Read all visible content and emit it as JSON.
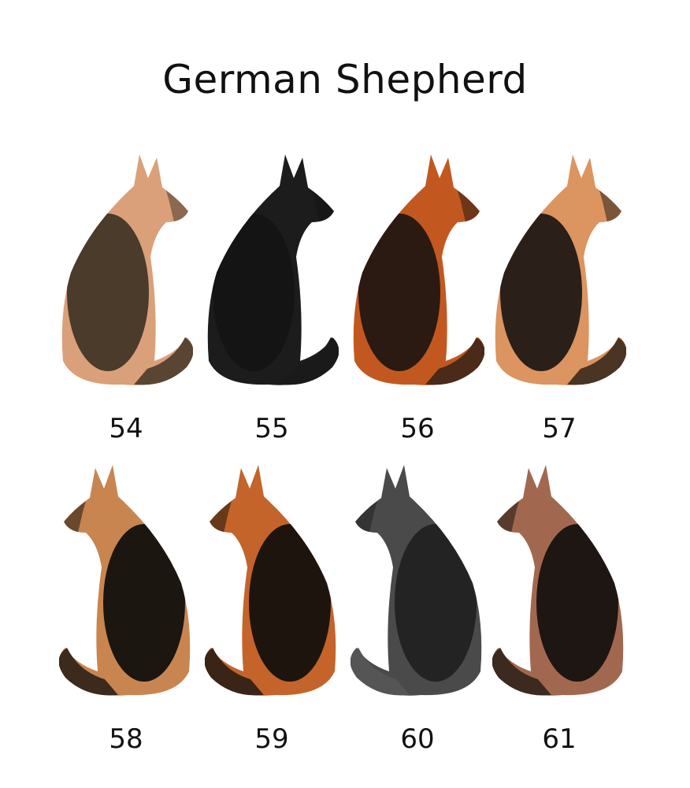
{
  "title": "German Shepherd",
  "variants": [
    {
      "label": "54",
      "base": "#d9a07a",
      "saddle": "#4a3b2b",
      "tail": "#5a4432",
      "facing": "right"
    },
    {
      "label": "55",
      "base": "#1c1c1c",
      "saddle": "#141414",
      "tail": "#1a1a1a",
      "facing": "right"
    },
    {
      "label": "56",
      "base": "#c2581f",
      "saddle": "#2b1a12",
      "tail": "#4a2a18",
      "facing": "right"
    },
    {
      "label": "57",
      "base": "#dc9460",
      "saddle": "#2a2019",
      "tail": "#4a3424",
      "facing": "right"
    },
    {
      "label": "58",
      "base": "#c98550",
      "saddle": "#1c1610",
      "tail": "#3c2a1c",
      "facing": "left"
    },
    {
      "label": "59",
      "base": "#c4642a",
      "saddle": "#1e140e",
      "tail": "#3a2416",
      "facing": "left"
    },
    {
      "label": "60",
      "base": "#4a4a4a",
      "saddle": "#232323",
      "tail": "#555555",
      "facing": "left"
    },
    {
      "label": "61",
      "base": "#a2684f",
      "saddle": "#1e1612",
      "tail": "#3c2a20",
      "facing": "left"
    }
  ]
}
